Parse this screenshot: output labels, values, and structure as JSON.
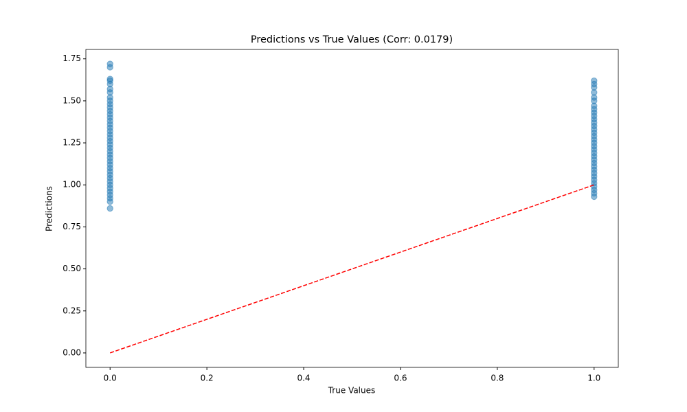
{
  "chart_data": {
    "type": "scatter",
    "title": "Predictions vs True Values (Corr: 0.0179)",
    "x_label": "True Values",
    "y_label": "Predictions",
    "xlim": [
      -0.05,
      1.05
    ],
    "ylim": [
      -0.086,
      1.806
    ],
    "xticks": [
      {
        "value": 0,
        "label": "0.0"
      },
      {
        "value": 0.2,
        "label": "0.2"
      },
      {
        "value": 0.4,
        "label": "0.4"
      },
      {
        "value": 0.6,
        "label": "0.6"
      },
      {
        "value": 0.8,
        "label": "0.8"
      },
      {
        "value": 1,
        "label": "1.0"
      }
    ],
    "yticks": [
      {
        "value": 0,
        "label": "0.00"
      },
      {
        "value": 0.25,
        "label": "0.25"
      },
      {
        "value": 0.5,
        "label": "0.50"
      },
      {
        "value": 0.75,
        "label": "0.75"
      },
      {
        "value": 1,
        "label": "1.00"
      },
      {
        "value": 1.25,
        "label": "1.25"
      },
      {
        "value": 1.5,
        "label": "1.50"
      },
      {
        "value": 1.75,
        "label": "1.75"
      }
    ],
    "series": [
      {
        "color": "#1f77b4",
        "x": [
          0,
          0,
          0,
          0,
          0,
          0,
          0,
          0,
          0,
          0,
          0,
          0,
          0,
          0,
          0,
          0,
          0,
          0,
          0,
          0,
          0,
          0,
          0,
          0,
          0,
          0,
          0,
          0,
          0,
          0,
          0,
          0,
          0,
          0,
          0,
          0,
          0,
          0,
          0,
          0
        ],
        "y": [
          1.72,
          1.7,
          1.63,
          1.62,
          1.6,
          1.57,
          1.55,
          1.52,
          1.5,
          1.48,
          1.46,
          1.44,
          1.42,
          1.4,
          1.38,
          1.36,
          1.34,
          1.32,
          1.3,
          1.28,
          1.26,
          1.24,
          1.22,
          1.2,
          1.18,
          1.16,
          1.14,
          1.12,
          1.1,
          1.08,
          1.06,
          1.04,
          1.02,
          1.0,
          0.98,
          0.96,
          0.94,
          0.92,
          0.9,
          0.86
        ]
      },
      {
        "color": "#1f77b4",
        "x": [
          1,
          1,
          1,
          1,
          1,
          1,
          1,
          1,
          1,
          1,
          1,
          1,
          1,
          1,
          1,
          1,
          1,
          1,
          1,
          1,
          1,
          1,
          1,
          1,
          1,
          1,
          1,
          1,
          1,
          1,
          1,
          1,
          1,
          1
        ],
        "y": [
          1.62,
          1.6,
          1.58,
          1.55,
          1.52,
          1.5,
          1.47,
          1.45,
          1.43,
          1.41,
          1.39,
          1.37,
          1.35,
          1.33,
          1.31,
          1.29,
          1.27,
          1.25,
          1.23,
          1.21,
          1.19,
          1.17,
          1.15,
          1.13,
          1.11,
          1.09,
          1.07,
          1.05,
          1.03,
          1.01,
          0.99,
          0.97,
          0.95,
          0.93
        ]
      }
    ],
    "reference_line": {
      "x": [
        0,
        1
      ],
      "y": [
        0,
        1
      ],
      "color": "red"
    }
  }
}
